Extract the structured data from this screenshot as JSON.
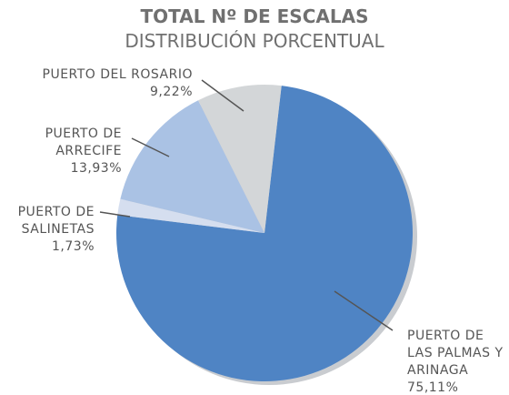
{
  "chart_data": {
    "type": "pie",
    "title": "TOTAL Nº DE ESCALAS",
    "subtitle": "DISTRIBUCIÓN PORCENTUAL",
    "categories": [
      "PUERTO DE LAS PALMAS Y ARINAGA",
      "PUERTO DE SALINETAS",
      "PUERTO DE ARRECIFE",
      "PUERTO DEL ROSARIO"
    ],
    "values": [
      75.11,
      1.73,
      13.93,
      9.22
    ],
    "value_labels": [
      "75,11%",
      "1,73%",
      "13,93%",
      "9,22%"
    ],
    "colors": [
      "#4f84c4",
      "#d5deef",
      "#aac2e4",
      "#d3d6d8"
    ]
  }
}
